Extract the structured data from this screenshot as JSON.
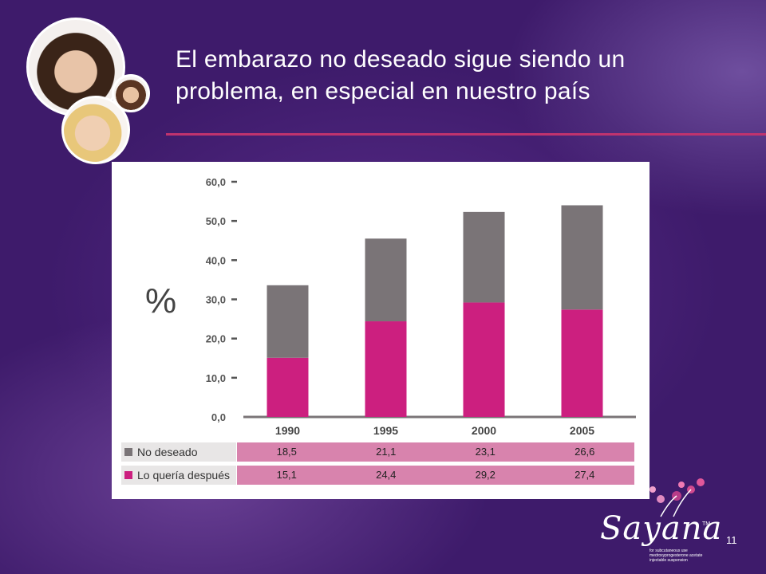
{
  "slide": {
    "title_line1": "El embarazo no deseado sigue siendo un",
    "title_line2": "problema, en especial en nuestro país",
    "page_number": "11",
    "accent_color": "#c0336e"
  },
  "logo": {
    "brand": "Sayana",
    "tm": "TM",
    "subtitle": "for subcutaneous use medroxyprogesterone acetate injectable suspension"
  },
  "chart_data": {
    "type": "bar",
    "stacked": true,
    "ylabel": "%",
    "categories": [
      "1990",
      "1995",
      "2000",
      "2005"
    ],
    "ylim": [
      0,
      60
    ],
    "yticks": [
      "0,0",
      "10,0",
      "20,0",
      "30,0",
      "40,0",
      "50,0",
      "60,0"
    ],
    "grid": false,
    "series": [
      {
        "name": "Lo quería después",
        "values": [
          15.1,
          24.4,
          29.2,
          27.4
        ],
        "labels": [
          "15,1",
          "24,4",
          "29,2",
          "27,4"
        ],
        "color": "#cc1f7f"
      },
      {
        "name": "No deseado",
        "values": [
          18.5,
          21.1,
          23.1,
          26.6
        ],
        "labels": [
          "18,5",
          "21,1",
          "23,1",
          "26,6"
        ],
        "color": "#7a7477"
      }
    ]
  }
}
